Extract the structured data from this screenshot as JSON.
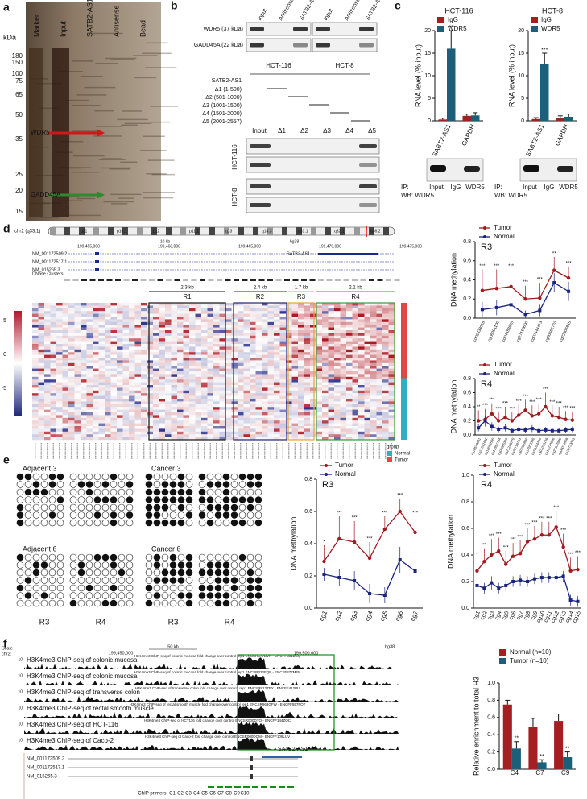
{
  "figure": {
    "panel_labels": [
      "a",
      "b",
      "c",
      "d",
      "e",
      "f"
    ],
    "a": {
      "unit": "kDa",
      "lanes": [
        "Marker",
        "Input",
        "SATB2-AS1",
        "Antisense",
        "Bead"
      ],
      "marker_kda": [
        180,
        150,
        100,
        75,
        65,
        50,
        35,
        25,
        20,
        15
      ],
      "arrows": [
        "WDR5",
        "GADD45A"
      ]
    },
    "b": {
      "top_columns": [
        "Input",
        "Antisense",
        "SATB2-AS1",
        "Input",
        "Antisense",
        "SATB2-AS1"
      ],
      "proteins": [
        "WDR5 (37 kDa)",
        "GADD45A (22 kDa)"
      ],
      "cells": [
        "HCT-116",
        "HCT-8"
      ],
      "construct_title": "SATB2-AS1",
      "constructs": [
        "Δ1 (1-500)",
        "Δ2 (501-1000)",
        "Δ3 (1001-1500)",
        "Δ4 (1501-2000)",
        "Δ5 (2001-2557)"
      ],
      "bottom_columns": [
        "Input",
        "Δ1",
        "Δ2",
        "Δ3",
        "Δ4",
        "Δ5"
      ]
    },
    "c": {
      "blot_ip": [
        "IP:",
        "Input",
        "IgG",
        "WDR5"
      ],
      "blot_wb": "WB: WDR5"
    },
    "d": {
      "chrom": "chr2 (q33.1)",
      "bands": [
        "p21",
        "p16.1",
        "p12",
        "p11.2",
        "q13",
        "q14.3",
        "q31.1",
        "q32.1",
        "q36.2"
      ],
      "scale": "10 kb",
      "assembly": "hg38",
      "positions": [
        "199,455,000",
        "199,460,000",
        "199,465,000",
        "199,470,000",
        "199,475,000"
      ],
      "genes": [
        "NM_001172509.2",
        "NM_001172517.1",
        "NM_015265.3"
      ],
      "lnc": "SATB2-AS1",
      "dnase": "DNase Clusters",
      "region_sizes": [
        "2.3 kb",
        "2.4 kb",
        "1.7 kb",
        "2.1 kb"
      ],
      "regions": [
        "R1",
        "R2",
        "R3",
        "R4"
      ],
      "color_scale": [
        5,
        0,
        -5
      ],
      "group_title": "group",
      "groups": [
        "Normal",
        "Tumor"
      ]
    },
    "e": {
      "samples": [
        "Adjacent 3",
        "Cancer 3",
        "Adjacent 6",
        "Cancer 6"
      ],
      "regions": [
        "R3",
        "R4",
        "R3",
        "R4"
      ]
    },
    "f": {
      "scale": "Scale",
      "chrom": "chr2:",
      "scale_bar": "50 kb",
      "assembly": "hg38",
      "positions": [
        "199,450,000",
        "199,500,000"
      ],
      "tracks": [
        "H3K4me3 ChIP-seq of colonic mucosa",
        "H3K4me3 ChIP-seq of colonic mucosa",
        "H3K4me3 ChIP-seq of transverse colon",
        "H3K4me3 ChIP-seq of rectal smooth muscle",
        "H3K4me3 ChIP-seq of HCT-116",
        "H3K4me3 ChIP-seq of Caco-2"
      ],
      "track_subtitles": [
        "H3K4me3 ChIP-seq of colonic mucosa fold change over control rep1 ENCSR577DVK - ENCFF881DEQ",
        "H3K4me3 ChIP-seq of colonic mucosa fold change over control rep1 ENCSR322FQP - ENCFF877MFN",
        "H3K4me3 ChIP-seq of transverse colon fold change over control rep1 ENCSR813ZEY - ENCFF412PU",
        "H3K4me3 ChIP-seq of rectal smooth muscle fold change over control rep1 ENCSR963GFW - ENCFF557FOT",
        "H3K4me3 ChIP-seq of HCT116 fold change over control ENCSR000DTQ - ENCFF144ZOC",
        "H3K4me3 ChIP-seq of Caco-2 fold change over control ENCSR000DQM - ENCFF109LUV"
      ],
      "track_max": 10,
      "genes": [
        "NM_001172509.2",
        "NM_001172517.1",
        "NM_015265.3"
      ],
      "lnc": "SATB2-AS1",
      "primer_title": "ChIP primers:",
      "primers": [
        "C1",
        "C2",
        "C3",
        "C4",
        "C5",
        "C6",
        "C7",
        "C8",
        "C9",
        "C10"
      ]
    }
  },
  "chart_data": [
    {
      "type": "bar",
      "title": "HCT-116",
      "y_label": "RNA level (% input)",
      "categories": [
        "SABT2-AS1",
        "GAPDH"
      ],
      "series": [
        {
          "name": "IgG",
          "color": "#a31f22",
          "values": [
            0.3,
            1.1
          ],
          "errors": [
            0.3,
            0.4
          ],
          "significance": [
            null,
            null
          ]
        },
        {
          "name": "WDR5",
          "color": "#1c5f78",
          "values": [
            16,
            1.2
          ],
          "errors": [
            4,
            0.6
          ],
          "significance": [
            "**",
            null
          ]
        }
      ],
      "ylim": [
        0,
        20
      ],
      "yticks": [
        0,
        5,
        10,
        15,
        20
      ]
    },
    {
      "type": "bar",
      "title": "HCT-8",
      "y_label": "RNA level (% input)",
      "categories": [
        "SABT2-AS1",
        "GAPDH"
      ],
      "series": [
        {
          "name": "IgG",
          "color": "#a31f22",
          "values": [
            0.4,
            0.6
          ],
          "errors": [
            0.3,
            0.5
          ],
          "significance": [
            null,
            null
          ]
        },
        {
          "name": "WDR5",
          "color": "#1c5f78",
          "values": [
            12.5,
            0.9
          ],
          "errors": [
            2.5,
            0.6
          ],
          "significance": [
            "***",
            null
          ]
        }
      ],
      "ylim": [
        0,
        20
      ],
      "yticks": [
        0,
        5,
        10,
        15,
        20
      ]
    },
    {
      "type": "line",
      "region": "R3",
      "region_color": "#e8a33a",
      "y_label": "DNA methylation",
      "categories": [
        "cg02833018",
        "cg08351100",
        "cg04488855",
        "cg27150600",
        "cg07444473",
        "cg00662770",
        "cg22905845"
      ],
      "series": [
        {
          "name": "Tumor",
          "color": "#9e1b20",
          "values": [
            0.29,
            0.31,
            0.33,
            0.2,
            0.21,
            0.5,
            0.42
          ],
          "errors": [
            0.22,
            0.2,
            0.18,
            0.14,
            0.16,
            0.14,
            0.12
          ],
          "significance": [
            "***",
            "***",
            "***",
            "***",
            "***",
            "**",
            "***"
          ]
        },
        {
          "name": "Normal",
          "color": "#1a237e",
          "values": [
            0.09,
            0.11,
            0.14,
            0.04,
            0.08,
            0.37,
            0.28
          ],
          "errors": [
            0.08,
            0.08,
            0.09,
            0.04,
            0.06,
            0.1,
            0.1
          ],
          "significance": [
            null,
            null,
            null,
            null,
            null,
            null,
            null
          ]
        }
      ],
      "ylim": [
        0,
        0.8
      ],
      "yticks": [
        {
          "value": 0,
          "label": "0.0"
        },
        0.2,
        0.4,
        0.6,
        0.8
      ]
    },
    {
      "type": "line",
      "region": "R4",
      "region_color": "#3a9a3a",
      "y_label": "DNA methylation",
      "categories": [
        "cg10576861",
        "cg11612422",
        "cg18682565",
        "cg13951734",
        "cg08665348",
        "cg21248870",
        "cg26718193",
        "cg07925990",
        "cg14562508",
        "cg23034490",
        "cg01036149",
        "cg12370986",
        "cg21107805",
        "cg09074859",
        "cg20733083"
      ],
      "series": [
        {
          "name": "Tumor",
          "color": "#9e1b20",
          "values": [
            0.2,
            0.22,
            0.3,
            0.2,
            0.25,
            0.2,
            0.28,
            0.35,
            0.27,
            0.3,
            0.4,
            0.27,
            0.25,
            0.22,
            0.21
          ],
          "errors": [
            0.15,
            0.15,
            0.15,
            0.12,
            0.15,
            0.12,
            0.15,
            0.15,
            0.15,
            0.15,
            0.2,
            0.15,
            0.15,
            0.12,
            0.12
          ],
          "significance": [
            "**",
            "***",
            "***",
            "***",
            "***",
            "***",
            "***",
            "***",
            "***",
            "***",
            "***",
            "***",
            "***",
            "***",
            "***"
          ]
        },
        {
          "name": "Normal",
          "color": "#1a237e",
          "values": [
            0.1,
            0.2,
            0.12,
            0.08,
            0.1,
            0.06,
            0.08,
            0.07,
            0.09,
            0.06,
            0.07,
            0.06,
            0.06,
            0.07,
            0.08
          ],
          "errors": [
            0.05,
            0.08,
            0.06,
            0.04,
            0.05,
            0.04,
            0.04,
            0.04,
            0.05,
            0.04,
            0.04,
            0.04,
            0.04,
            0.04,
            0.04
          ],
          "significance": [
            null,
            null,
            null,
            null,
            null,
            null,
            null,
            null,
            null,
            null,
            null,
            null,
            null,
            null,
            null
          ]
        }
      ],
      "ylim": [
        0,
        0.8
      ],
      "yticks": [
        {
          "value": 0,
          "label": "0.0"
        },
        0.2,
        0.4,
        0.6,
        0.8
      ]
    },
    {
      "type": "line",
      "region": "R3",
      "region_color": "#e8a33a",
      "y_label": "DNA methylation",
      "categories": [
        "cg1",
        "cg2",
        "cg3",
        "cg4",
        "cg5",
        "cg6",
        "cg7"
      ],
      "series": [
        {
          "name": "Tumor",
          "color": "#9e1b20",
          "values": [
            0.29,
            0.43,
            0.41,
            0.31,
            0.49,
            0.6,
            0.47
          ],
          "errors": [
            0.1,
            0.14,
            0.13,
            0.1,
            0.08,
            0.08,
            0.1
          ],
          "significance": [
            "*",
            "***",
            "***",
            "***",
            "***",
            "***",
            "***"
          ]
        },
        {
          "name": "Normal",
          "color": "#1a237e",
          "values": [
            0.21,
            0.19,
            0.17,
            0.09,
            0.08,
            0.3,
            0.23
          ],
          "errors": [
            0.04,
            0.05,
            0.06,
            0.06,
            0.05,
            0.08,
            0.08
          ],
          "significance": [
            null,
            null,
            null,
            null,
            null,
            null,
            null
          ]
        }
      ],
      "ylim": [
        0,
        0.8
      ],
      "yticks": [
        {
          "value": 0,
          "label": "0.0"
        },
        0.2,
        0.4,
        0.6,
        0.8
      ]
    },
    {
      "type": "line",
      "region": "R4",
      "region_color": "#3a9a3a",
      "y_label": "DNA methylation",
      "categories": [
        "cg1",
        "cg2",
        "cg3",
        "cg4",
        "cg5",
        "cg6",
        "cg7",
        "cg8",
        "cg9",
        "cg10",
        "cg11",
        "cg12",
        "cg13",
        "cg14",
        "cg15"
      ],
      "series": [
        {
          "name": "Tumor",
          "color": "#9e1b20",
          "values": [
            0.28,
            0.35,
            0.4,
            0.43,
            0.33,
            0.39,
            0.41,
            0.5,
            0.52,
            0.55,
            0.55,
            0.61,
            0.46,
            0.28,
            0.29
          ],
          "errors": [
            0.1,
            0.1,
            0.12,
            0.1,
            0.1,
            0.1,
            0.1,
            0.1,
            0.1,
            0.1,
            0.1,
            0.12,
            0.1,
            0.1,
            0.1
          ],
          "significance": [
            "*",
            "**",
            "***",
            "***",
            "***",
            "***",
            "***",
            "***",
            "***",
            "***",
            "***",
            "***",
            "***",
            "***",
            "***"
          ]
        },
        {
          "name": "Normal",
          "color": "#1a237e",
          "values": [
            0.17,
            0.15,
            0.19,
            0.15,
            0.17,
            0.2,
            0.21,
            0.2,
            0.22,
            0.23,
            0.23,
            0.23,
            0.24,
            0.06,
            0.05
          ],
          "errors": [
            0.04,
            0.04,
            0.05,
            0.04,
            0.04,
            0.04,
            0.04,
            0.04,
            0.04,
            0.04,
            0.04,
            0.04,
            0.04,
            0.04,
            0.04
          ],
          "significance": [
            null,
            null,
            null,
            null,
            null,
            null,
            null,
            null,
            null,
            null,
            null,
            null,
            null,
            null,
            null
          ]
        }
      ],
      "ylim": [
        0,
        1
      ],
      "yticks": [
        {
          "value": 0,
          "label": "0.0"
        },
        0.2,
        0.4,
        0.6,
        0.8,
        {
          "value": 1,
          "label": "1.0"
        }
      ]
    },
    {
      "type": "bar",
      "y_label": "Relative enrichment to total H3",
      "categories": [
        "C4",
        "C7",
        "C9"
      ],
      "series": [
        {
          "name": "Normal (n=10)",
          "color": "#a31f22",
          "values": [
            0.75,
            0.49,
            0.56
          ],
          "errors": [
            0.05,
            0.1,
            0.08
          ],
          "significance": [
            null,
            null,
            null
          ]
        },
        {
          "name": "Tumor (n=10)",
          "color": "#1c5f78",
          "values": [
            0.24,
            0.08,
            0.14
          ],
          "errors": [
            0.08,
            0.03,
            0.06
          ],
          "significance": [
            "**",
            "**",
            "**"
          ]
        }
      ],
      "ylim": [
        0,
        1
      ],
      "yticks": [
        {
          "value": 0,
          "label": "0.0"
        },
        0.2,
        0.4,
        0.6,
        0.8,
        {
          "value": 1,
          "label": "1.0"
        }
      ]
    }
  ]
}
